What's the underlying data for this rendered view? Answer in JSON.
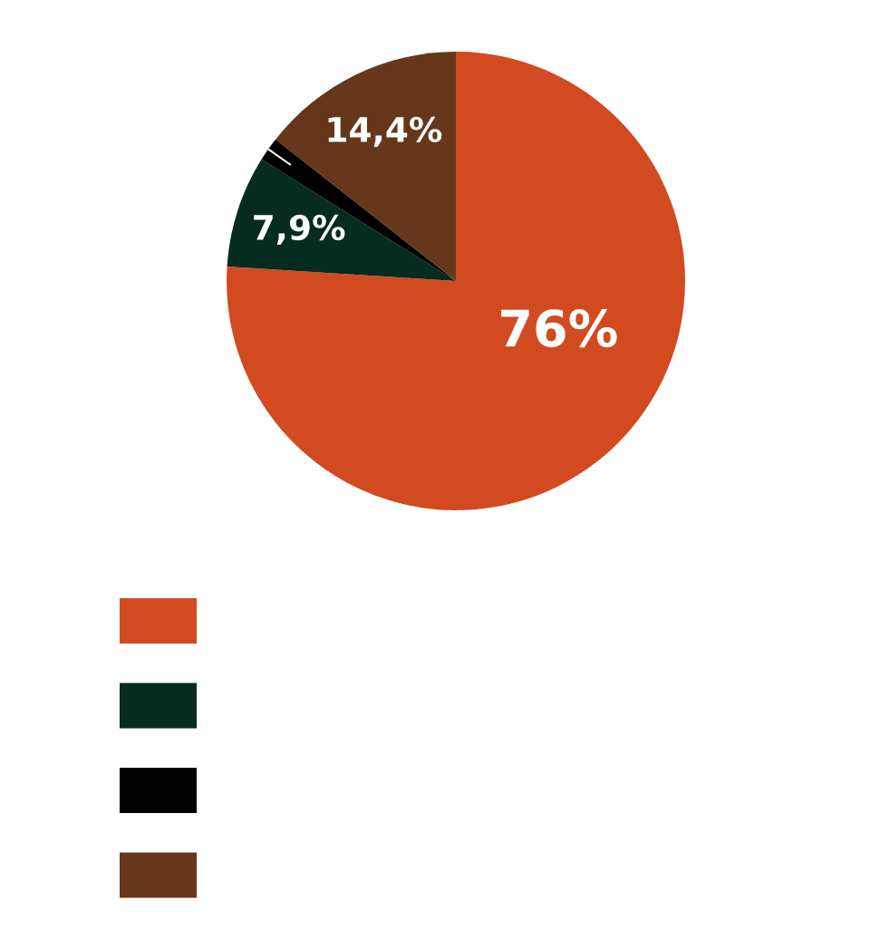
{
  "chart_data": {
    "type": "pie",
    "categories": [
      null,
      null,
      null,
      null
    ],
    "values": [
      76,
      7.9,
      1.7,
      14.4
    ],
    "colors": [
      "#d14a20",
      "#062b1f",
      "#000000",
      "#66371b"
    ],
    "value_labels": [
      "76%",
      "7,9%",
      null,
      "14,4%"
    ]
  }
}
